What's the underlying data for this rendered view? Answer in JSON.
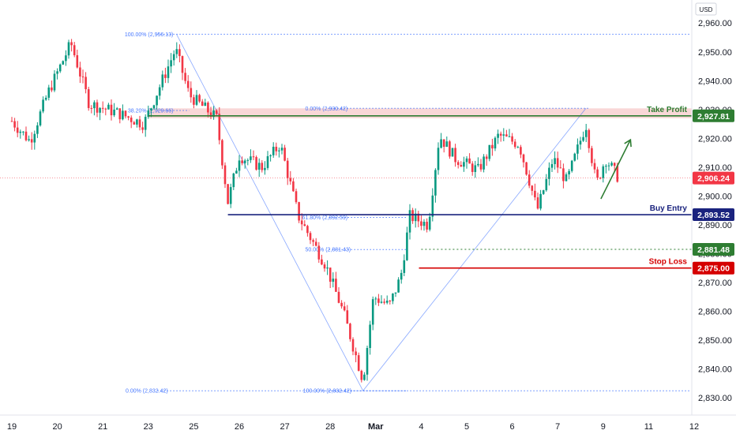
{
  "chart_data": {
    "type": "candlestick",
    "currency": "USD",
    "colors": {
      "up": "#089981",
      "down": "#f23645",
      "take_profit": "#2e7d32",
      "take_profit_zone": "#f7c9c9",
      "buy_entry": "#1a237e",
      "stop_loss": "#d50000",
      "support": "#2e7d32",
      "fib": "#2962ff",
      "last_price": "#f23645",
      "arrow": "#2e7d32"
    },
    "ylim": [
      2824,
      2968
    ],
    "y_ticks": [
      {
        "value": 2960,
        "label": "2,960.00"
      },
      {
        "value": 2950,
        "label": "2,950.00"
      },
      {
        "value": 2940,
        "label": "2,940.00"
      },
      {
        "value": 2930,
        "label": "2,930.00"
      },
      {
        "value": 2920,
        "label": "2,920.00"
      },
      {
        "value": 2910,
        "label": "2,910.00"
      },
      {
        "value": 2900,
        "label": "2,900.00"
      },
      {
        "value": 2890,
        "label": "2,890.00"
      },
      {
        "value": 2880,
        "label": "2,880.00"
      },
      {
        "value": 2870,
        "label": "2,870.00"
      },
      {
        "value": 2860,
        "label": "2,860.00"
      },
      {
        "value": 2850,
        "label": "2,850.00"
      },
      {
        "value": 2840,
        "label": "2,840.00"
      },
      {
        "value": 2830,
        "label": "2,830.00"
      }
    ],
    "x_ticks": [
      {
        "label": "19",
        "t": 0.0
      },
      {
        "label": "20",
        "t": 1.0
      },
      {
        "label": "21",
        "t": 2.0
      },
      {
        "label": "23",
        "t": 3.0
      },
      {
        "label": "25",
        "t": 4.0
      },
      {
        "label": "26",
        "t": 5.0
      },
      {
        "label": "27",
        "t": 6.0
      },
      {
        "label": "28",
        "t": 7.0
      },
      {
        "label": "Mar",
        "t": 8.0
      },
      {
        "label": "4",
        "t": 9.0
      },
      {
        "label": "5",
        "t": 10.0
      },
      {
        "label": "6",
        "t": 11.0
      },
      {
        "label": "7",
        "t": 12.0
      },
      {
        "label": "9",
        "t": 13.0
      },
      {
        "label": "11",
        "t": 14.0
      },
      {
        "label": "12",
        "t": 15.0
      }
    ],
    "levels": [
      {
        "name": "Take Profit",
        "value": 2927.81,
        "label": "2,927.81",
        "t_start": 3.0,
        "color_key": "take_profit"
      },
      {
        "name": "Buy Entry",
        "value": 2893.52,
        "label": "2,893.52",
        "t_start": 4.75,
        "color_key": "buy_entry"
      },
      {
        "name": "",
        "value": 2881.48,
        "label": "2,881.48",
        "t_start": 9.0,
        "color_key": "support",
        "dashed": true
      },
      {
        "name": "Stop Loss",
        "value": 2875.0,
        "label": "2,875.00",
        "t_start": 8.95,
        "color_key": "stop_loss"
      }
    ],
    "take_profit_zone": [
      2927.0,
      2930.4
    ],
    "last_price": {
      "value": 2906.24,
      "label": "2,906.24"
    },
    "fib_levels": [
      {
        "text": "100.00% (2,956.13)",
        "value": 2956.13,
        "t_label": 2.48,
        "t_start": 3.2,
        "t_end": 15.3
      },
      {
        "text": "0.00% (2,832.42)",
        "value": 2832.42,
        "t_label": 2.5,
        "t_start": 3.2,
        "t_end": 15.3
      },
      {
        "text": "0.00% (2,930.42)",
        "value": 2930.42,
        "t_label": 6.45,
        "t_start": 6.95,
        "t_end": 12.7
      },
      {
        "text": "38.20% (2,929.66)",
        "value": 2929.66,
        "t_label": 2.55,
        "t_start": 3.2,
        "t_end": 3.9
      },
      {
        "text": "61.80% (2,892.59)",
        "value": 2892.59,
        "t_label": 6.38,
        "t_start": 6.97,
        "t_end": 8.7
      },
      {
        "text": "50.00% (2,881.43)",
        "value": 2881.43,
        "t_label": 6.45,
        "t_start": 6.97,
        "t_end": 8.7
      },
      {
        "text": "100.00% (2,832.42)",
        "value": 2832.42,
        "t_label": 6.4,
        "t_start": 6.97,
        "t_end": 8.7
      }
    ],
    "fib_trendlines": [
      {
        "t1": 3.62,
        "v1": 2956.13,
        "t2": 7.72,
        "v2": 2832.42
      },
      {
        "t1": 7.72,
        "v1": 2832.42,
        "t2": 12.62,
        "v2": 2930.42
      }
    ],
    "arrow": {
      "t1": 12.95,
      "v1": 2899.0,
      "t2": 13.6,
      "v2": 2919.5
    },
    "anchors": [
      {
        "t": 0.0,
        "v": 2926
      },
      {
        "t": 0.4,
        "v": 2919
      },
      {
        "t": 0.8,
        "v": 2936
      },
      {
        "t": 1.3,
        "v": 2953
      },
      {
        "t": 1.7,
        "v": 2932
      },
      {
        "t": 2.3,
        "v": 2929
      },
      {
        "t": 2.9,
        "v": 2925
      },
      {
        "t": 3.6,
        "v": 2951
      },
      {
        "t": 3.9,
        "v": 2935
      },
      {
        "t": 4.5,
        "v": 2927
      },
      {
        "t": 4.75,
        "v": 2898
      },
      {
        "t": 5.0,
        "v": 2914
      },
      {
        "t": 5.5,
        "v": 2910
      },
      {
        "t": 5.9,
        "v": 2918
      },
      {
        "t": 6.3,
        "v": 2893
      },
      {
        "t": 6.9,
        "v": 2876
      },
      {
        "t": 7.3,
        "v": 2859
      },
      {
        "t": 7.72,
        "v": 2836
      },
      {
        "t": 7.95,
        "v": 2865
      },
      {
        "t": 8.3,
        "v": 2862
      },
      {
        "t": 8.55,
        "v": 2872
      },
      {
        "t": 8.75,
        "v": 2893
      },
      {
        "t": 9.15,
        "v": 2890
      },
      {
        "t": 9.4,
        "v": 2921
      },
      {
        "t": 9.75,
        "v": 2913
      },
      {
        "t": 10.25,
        "v": 2909
      },
      {
        "t": 10.7,
        "v": 2921
      },
      {
        "t": 11.15,
        "v": 2918
      },
      {
        "t": 11.4,
        "v": 2904
      },
      {
        "t": 11.55,
        "v": 2895
      },
      {
        "t": 11.9,
        "v": 2913
      },
      {
        "t": 12.2,
        "v": 2905
      },
      {
        "t": 12.62,
        "v": 2925
      },
      {
        "t": 12.85,
        "v": 2904
      },
      {
        "t": 13.05,
        "v": 2913
      },
      {
        "t": 13.35,
        "v": 2906
      }
    ]
  }
}
